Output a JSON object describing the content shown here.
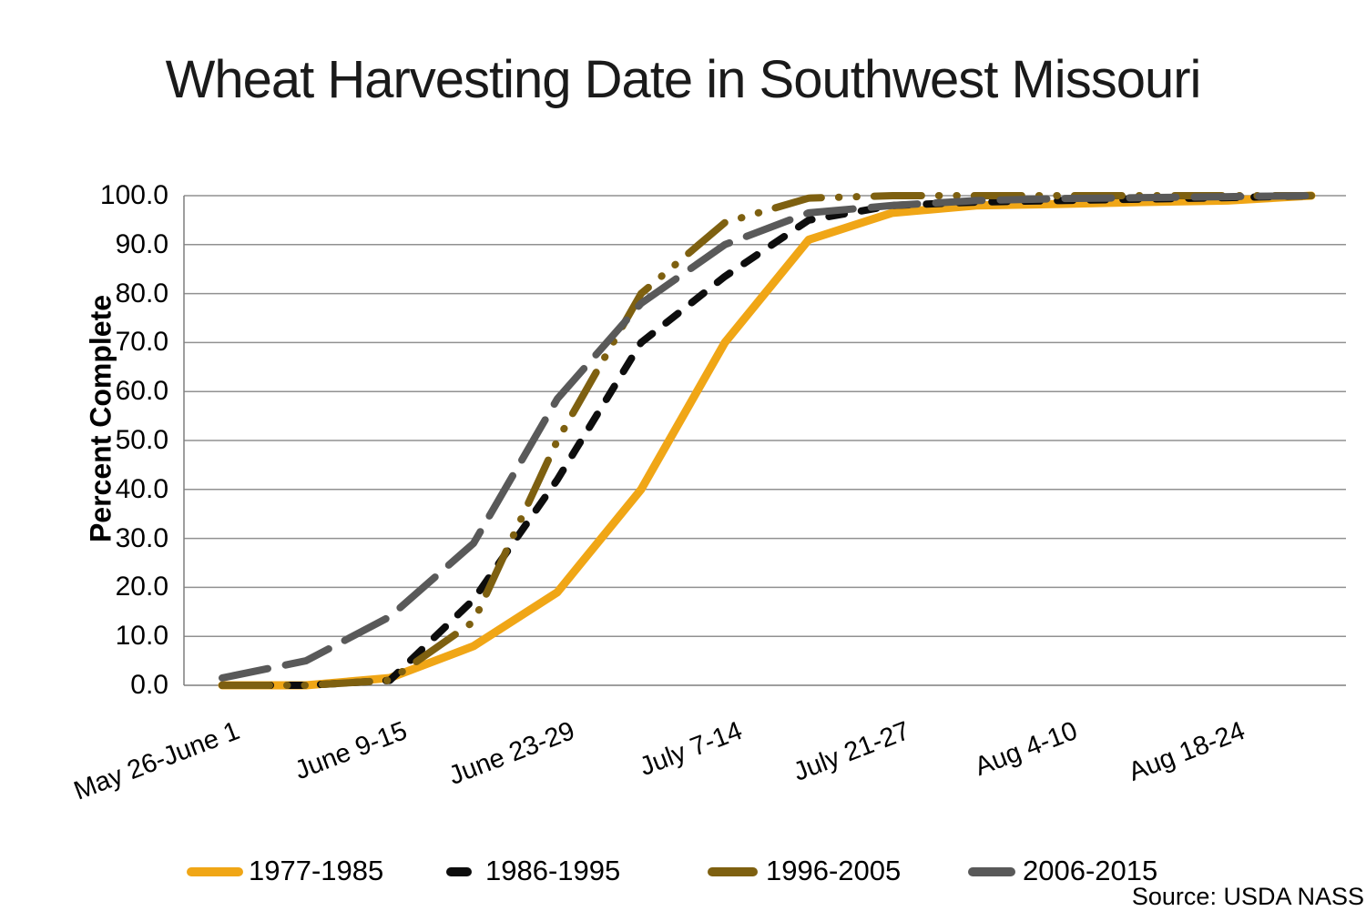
{
  "title": "Wheat Harvesting Date in Southwest Missouri",
  "source_note": "Source: USDA NASS",
  "chart_data": {
    "type": "line",
    "title": "Wheat Harvesting Date in Southwest Missouri",
    "xlabel": "",
    "ylabel": "Percent Complete",
    "ylim": [
      0,
      100
    ],
    "y_tick_step": 10,
    "y_tick_labels": [
      "0.0",
      "10.0",
      "20.0",
      "30.0",
      "40.0",
      "50.0",
      "60.0",
      "70.0",
      "80.0",
      "90.0",
      "100.0"
    ],
    "x_tick_labels": [
      "May 26-June 1",
      "June 9-15",
      "June 23-29",
      "July 7-14",
      "July 21-27",
      "Aug 4-10",
      "Aug 18-24"
    ],
    "x_tick_point_indexes": [
      0,
      2,
      4,
      6,
      8,
      10,
      12
    ],
    "points_per_series": 14,
    "grid": "horizontal",
    "legend_position": "bottom",
    "series": [
      {
        "name": "1977-1985",
        "color": "#F0A616",
        "line_style": "solid",
        "values": [
          0,
          0,
          1.5,
          8,
          19,
          40,
          70,
          91,
          96.5,
          98,
          98.3,
          98.7,
          99,
          100
        ]
      },
      {
        "name": "1986-1995",
        "color": "#0D0D0D",
        "line_style": "dash",
        "values": [
          0,
          0,
          1,
          17.5,
          42,
          70,
          83.5,
          95,
          98,
          98.7,
          99,
          99.3,
          99.6,
          100
        ]
      },
      {
        "name": "1996-2005",
        "color": "#7E6010",
        "line_style": "long-dash-dot-dot",
        "values": [
          0,
          0,
          1,
          13,
          50,
          80,
          94.5,
          99.5,
          100,
          100,
          100,
          100,
          100,
          100
        ]
      },
      {
        "name": "2006-2015",
        "color": "#595959",
        "line_style": "long-dash",
        "values": [
          1.5,
          5,
          14,
          29,
          58.5,
          78,
          90,
          96.5,
          98,
          99,
          99.4,
          99.6,
          99.8,
          100
        ]
      }
    ]
  }
}
